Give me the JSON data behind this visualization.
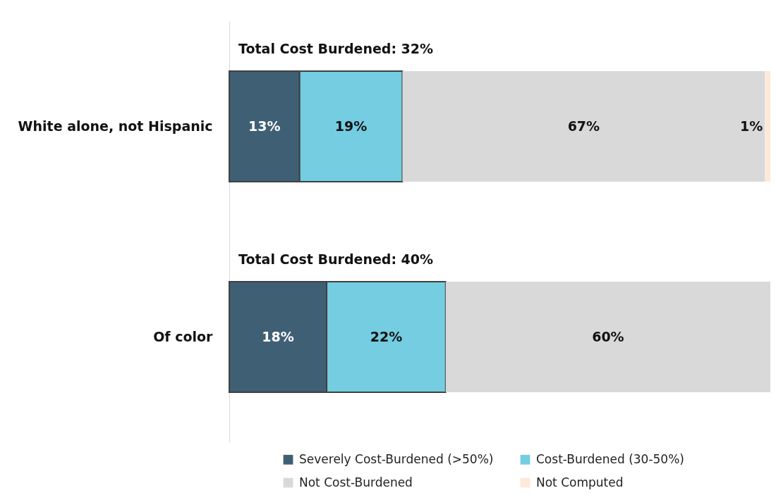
{
  "chart_data": {
    "type": "bar",
    "orientation": "horizontal",
    "stacked": true,
    "categories": [
      "White alone, not Hispanic",
      "Of color"
    ],
    "series": [
      {
        "name": "Severely Cost-Burdened (>50%)",
        "color": "#3f5f75",
        "values": [
          13,
          18
        ],
        "value_labels": [
          "13%",
          "18%"
        ]
      },
      {
        "name": "Cost-Burdened (30-50%)",
        "color": "#74cde0",
        "values": [
          19,
          22
        ],
        "value_labels": [
          "19%",
          "22%"
        ]
      },
      {
        "name": "Not Cost-Burdened",
        "color": "#d9d9d9",
        "values": [
          67,
          60
        ],
        "value_labels": [
          "67%",
          "60%"
        ]
      },
      {
        "name": "Not Computed",
        "color": "#fde9d9",
        "values": [
          1,
          null
        ],
        "value_labels": [
          "1%",
          null
        ]
      }
    ],
    "xlim": [
      0,
      100
    ],
    "tick_labels": "y",
    "grid": false,
    "legend": "bottom",
    "annotations": [
      "Total Cost Burdened: 32%",
      "Total Cost Burdened: 40%"
    ]
  }
}
